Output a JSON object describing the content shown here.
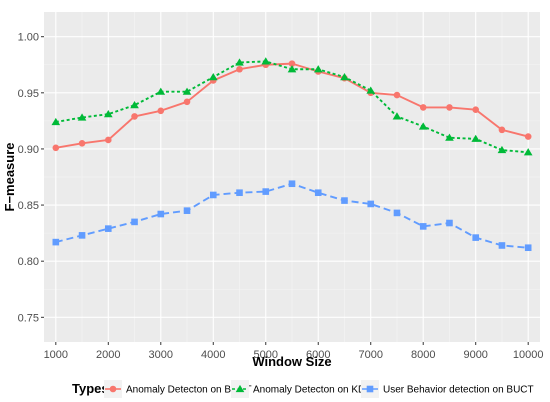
{
  "chart_data": {
    "type": "line",
    "xlabel": "Window Size",
    "ylabel": "F−measure",
    "xlim": [
      775,
      10225
    ],
    "ylim": [
      0.728,
      1.022
    ],
    "x_ticks": [
      1000,
      2000,
      3000,
      4000,
      5000,
      6000,
      7000,
      8000,
      9000,
      10000
    ],
    "y_ticks": [
      0.75,
      0.8,
      0.85,
      0.9,
      0.95,
      1.0
    ],
    "y_tick_labels": [
      "0.75",
      "0.80",
      "0.85",
      "0.90",
      "0.95",
      "1.00"
    ],
    "grid": true,
    "background": "#ebebeb",
    "legend": {
      "title": "Types",
      "position": "bottom"
    },
    "x": [
      1000,
      1500,
      2000,
      2500,
      3000,
      3500,
      4000,
      4500,
      5000,
      5500,
      6000,
      6500,
      7000,
      7500,
      8000,
      8500,
      9000,
      9500,
      10000
    ],
    "series": [
      {
        "name": "Anomaly Detecton on BUCT",
        "color": "#f8766d",
        "marker": "circle",
        "line_style": "solid",
        "values": [
          0.901,
          0.905,
          0.908,
          0.929,
          0.934,
          0.942,
          0.961,
          0.971,
          0.975,
          0.976,
          0.969,
          0.963,
          0.95,
          0.948,
          0.937,
          0.937,
          0.935,
          0.917,
          0.911
        ]
      },
      {
        "name": "Anomaly Detecton on KDD",
        "color": "#00ba38",
        "marker": "triangle",
        "line_style": "dotted",
        "values": [
          0.924,
          0.928,
          0.931,
          0.939,
          0.951,
          0.951,
          0.964,
          0.977,
          0.978,
          0.971,
          0.971,
          0.964,
          0.952,
          0.929,
          0.92,
          0.91,
          0.909,
          0.899,
          0.897
        ]
      },
      {
        "name": "User Behavior detection on BUCT",
        "color": "#619cff",
        "marker": "square",
        "line_style": "dashed",
        "values": [
          0.817,
          0.823,
          0.829,
          0.835,
          0.842,
          0.845,
          0.859,
          0.861,
          0.862,
          0.869,
          0.861,
          0.854,
          0.851,
          0.843,
          0.831,
          0.834,
          0.821,
          0.814,
          0.812
        ]
      }
    ]
  }
}
